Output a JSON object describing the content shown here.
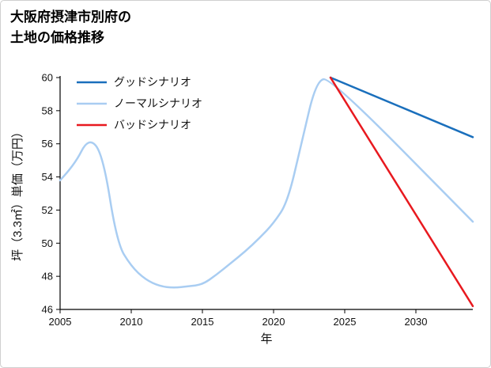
{
  "title": {
    "line1": "大阪府摂津市別府の",
    "line2": "土地の価格推移"
  },
  "chart_data": {
    "type": "line",
    "title": "大阪府摂津市別府の土地の価格推移",
    "xlabel": "年",
    "ylabel": "坪（3.3㎡）単価（万円）",
    "xlim": [
      2005,
      2034
    ],
    "ylim": [
      46,
      60
    ],
    "xticks": [
      2005,
      2010,
      2015,
      2020,
      2025,
      2030
    ],
    "yticks": [
      46,
      48,
      50,
      52,
      54,
      56,
      58,
      60
    ],
    "grid": false,
    "legend_position": "upper-left",
    "forecast_start": 2024,
    "axis_color": "#000000",
    "series": [
      {
        "name": "グッドシナリオ",
        "color": "#1a6fbc",
        "x": [
          2024,
          2034
        ],
        "y": [
          60,
          56.4
        ]
      },
      {
        "name": "ノーマルシナリオ",
        "color": "#a9cdf2",
        "x": [
          2005,
          2006,
          2007,
          2008,
          2009,
          2010,
          2011,
          2012,
          2013,
          2014,
          2015,
          2016,
          2017,
          2018,
          2019,
          2020,
          2021,
          2022,
          2023,
          2024,
          2034
        ],
        "y": [
          53.8,
          54.7,
          56.4,
          55.4,
          50.0,
          48.6,
          47.8,
          47.4,
          47.3,
          47.4,
          47.5,
          48.1,
          48.8,
          49.5,
          50.3,
          51.2,
          52.5,
          56.2,
          59.8,
          60.0,
          51.3
        ]
      },
      {
        "name": "バッドシナリオ",
        "color": "#e8191f",
        "x": [
          2024,
          2034
        ],
        "y": [
          60,
          46.2
        ]
      }
    ]
  }
}
